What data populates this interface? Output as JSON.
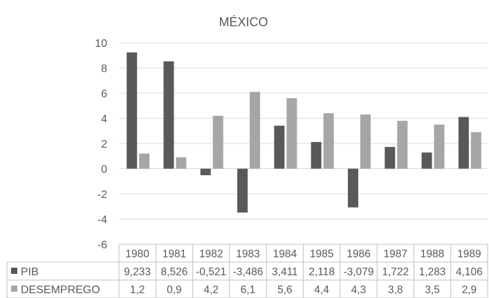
{
  "chart_data": {
    "type": "bar",
    "title": "MÉXICO",
    "categories": [
      "1980",
      "1981",
      "1982",
      "1983",
      "1984",
      "1985",
      "1986",
      "1987",
      "1988",
      "1989"
    ],
    "series": [
      {
        "name": "PIB",
        "color": "#595959",
        "values": [
          9.233,
          8.526,
          -0.521,
          -3.486,
          3.411,
          2.118,
          -3.079,
          1.722,
          1.283,
          4.106
        ],
        "labels": [
          "9,233",
          "8,526",
          "-0,521",
          "-3,486",
          "3,411",
          "2,118",
          "-3,079",
          "1,722",
          "1,283",
          "4,106"
        ]
      },
      {
        "name": "DESEMPREGO",
        "color": "#a6a6a6",
        "values": [
          1.2,
          0.9,
          4.2,
          6.1,
          5.6,
          4.4,
          4.3,
          3.8,
          3.5,
          2.9
        ],
        "labels": [
          "1,2",
          "0,9",
          "4,2",
          "6,1",
          "5,6",
          "4,4",
          "4,3",
          "3,8",
          "3,5",
          "2,9"
        ]
      }
    ],
    "ylim": [
      -6,
      10
    ],
    "yticks": [
      -6,
      -4,
      -2,
      0,
      2,
      4,
      6,
      8,
      10
    ],
    "xlabel": "",
    "ylabel": "",
    "grid": true,
    "legend": "data-table"
  }
}
